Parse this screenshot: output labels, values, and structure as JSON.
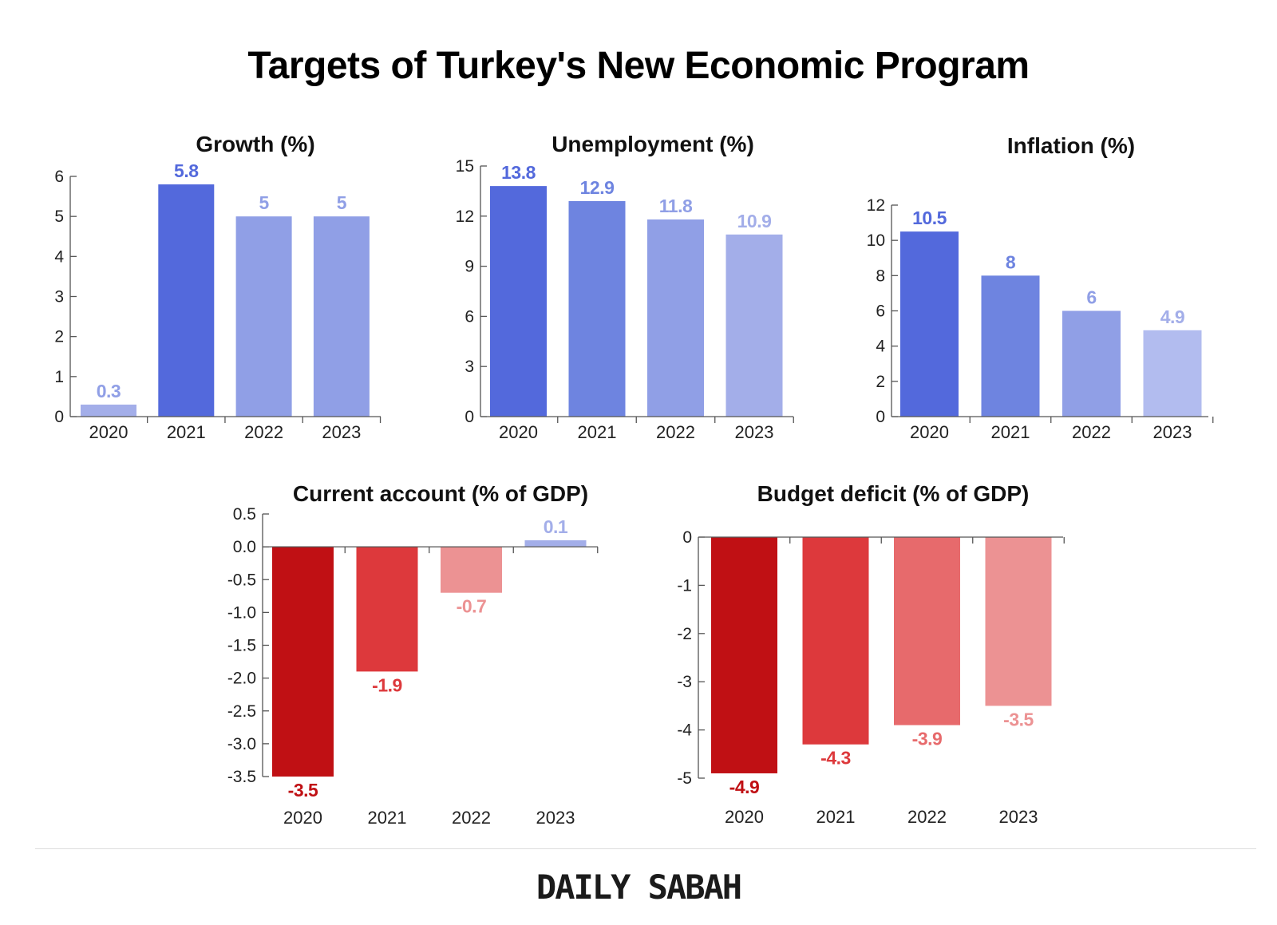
{
  "title": "Targets of Turkey's New Economic Program",
  "brand": "DAILY SABAH",
  "chart_data": [
    {
      "type": "bar",
      "title": "Growth (%)",
      "categories": [
        "2020",
        "2021",
        "2022",
        "2023"
      ],
      "values": [
        0.3,
        5.8,
        5,
        5
      ],
      "value_labels": [
        "0.3",
        "5.8",
        "5",
        "5"
      ],
      "ylim": [
        0,
        6
      ],
      "yticks": [
        "0",
        "1",
        "2",
        "3",
        "4",
        "5",
        "6"
      ],
      "bar_colors": [
        "#a3aee9",
        "#5369dc",
        "#909fe6",
        "#909fe6"
      ],
      "label_colors": [
        "#909fe6",
        "#5369dc",
        "#909fe6",
        "#909fe6"
      ]
    },
    {
      "type": "bar",
      "title": "Unemployment (%)",
      "categories": [
        "2020",
        "2021",
        "2022",
        "2023"
      ],
      "values": [
        13.8,
        12.9,
        11.8,
        10.9
      ],
      "value_labels": [
        "13.8",
        "12.9",
        "11.8",
        "10.9"
      ],
      "ylim": [
        0,
        15
      ],
      "yticks": [
        "0",
        "3",
        "6",
        "9",
        "12",
        "15"
      ],
      "bar_colors": [
        "#5369dc",
        "#6e84e0",
        "#909fe6",
        "#a3aee9"
      ],
      "label_colors": [
        "#5369dc",
        "#6e84e0",
        "#909fe6",
        "#a3aee9"
      ]
    },
    {
      "type": "bar",
      "title": "Inflation (%)",
      "categories": [
        "2020",
        "2021",
        "2022",
        "2023"
      ],
      "values": [
        10.5,
        8,
        6,
        4.9
      ],
      "value_labels": [
        "10.5",
        "8",
        "6",
        "4.9"
      ],
      "ylim": [
        0,
        12
      ],
      "yticks": [
        "0",
        "2",
        "4",
        "6",
        "8",
        "10",
        "12"
      ],
      "bar_colors": [
        "#5369dc",
        "#6e84e0",
        "#909fe6",
        "#b2bcef"
      ],
      "label_colors": [
        "#5369dc",
        "#6e84e0",
        "#909fe6",
        "#a3aee9"
      ]
    },
    {
      "type": "bar",
      "title": "Current account (% of GDP)",
      "categories": [
        "2020",
        "2021",
        "2022",
        "2023"
      ],
      "values": [
        -3.5,
        -1.9,
        -0.7,
        0.1
      ],
      "value_labels": [
        "-3.5",
        "-1.9",
        "-0.7",
        "0.1"
      ],
      "ylim": [
        -3.5,
        0.5
      ],
      "yticks": [
        "0.5",
        "0.0",
        "-0.5",
        "-1.0",
        "-1.5",
        "-2.0",
        "-2.5",
        "-3.0",
        "-3.5"
      ],
      "bar_colors": [
        "#c01014",
        "#dd393c",
        "#ec9293",
        "#a3aee9"
      ],
      "label_colors": [
        "#c01014",
        "#dd393c",
        "#ec9293",
        "#a3aee9"
      ]
    },
    {
      "type": "bar",
      "title": "Budget deficit (% of GDP)",
      "categories": [
        "2020",
        "2021",
        "2022",
        "2023"
      ],
      "values": [
        -4.9,
        -4.3,
        -3.9,
        -3.5
      ],
      "value_labels": [
        "-4.9",
        "-4.3",
        "-3.9",
        "-3.5"
      ],
      "ylim": [
        -5,
        0
      ],
      "yticks": [
        "0",
        "-1",
        "-2",
        "-3",
        "-4",
        "-5"
      ],
      "bar_colors": [
        "#c01014",
        "#dd393c",
        "#e76a6c",
        "#ec9293"
      ],
      "label_colors": [
        "#c01014",
        "#dd393c",
        "#e76a6c",
        "#ec9293"
      ]
    }
  ]
}
